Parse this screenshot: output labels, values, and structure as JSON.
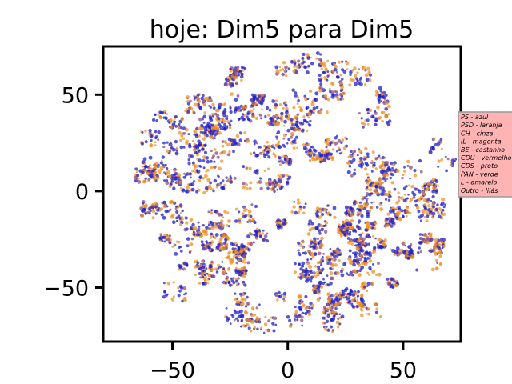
{
  "chart_data": {
    "type": "scatter",
    "title": "hoje: Dim5 para Dim5",
    "xlabel": "",
    "ylabel": "",
    "xlim": [
      -80,
      75
    ],
    "ylim": [
      -78,
      75
    ],
    "x_ticks": [
      -50,
      0,
      50
    ],
    "x_tick_labels": [
      "−50",
      "0",
      "50"
    ],
    "y_ticks": [
      -50,
      0,
      50
    ],
    "y_tick_labels": [
      "−50",
      "0",
      "50"
    ],
    "grid": false,
    "legend_placement": "right",
    "legend_background": "#ffb3b3",
    "legend_entries": [
      "PS - azul",
      "PSD - laranja",
      "CH - cinza",
      "IL - magenta",
      "BE - castanho",
      "CDU - vermelho",
      "CDS - preto",
      "PAN - verde",
      "L - amarelo",
      "Outro - lilás"
    ],
    "point_cloud": {
      "shape": "roughly circular t-SNE embedding",
      "center": [
        0,
        0
      ],
      "radius": 75,
      "colors_present": [
        "#1f1fcf",
        "#f09020",
        "#8a4a8a"
      ]
    }
  }
}
